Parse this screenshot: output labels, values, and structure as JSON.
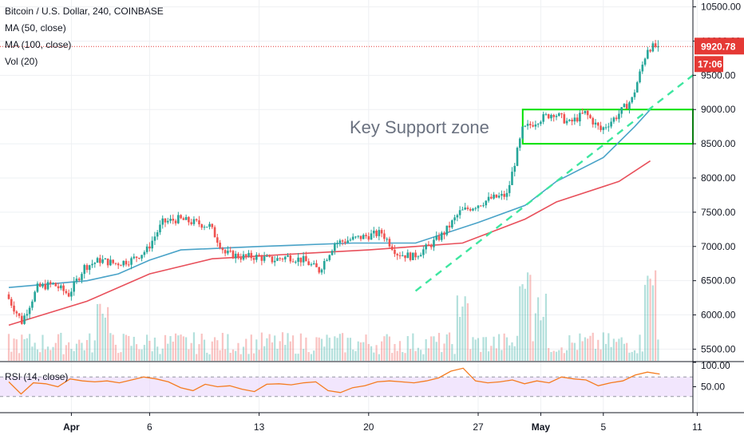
{
  "colors": {
    "up": "#26a69a",
    "down": "#ef5350",
    "ma50": "#4aa3c8",
    "ma100": "#e8505b",
    "support": "#00e000",
    "trendline": "#3ee6a0",
    "rsi": "#f57c20",
    "rsi_band": "#e9d5fb",
    "price_label": "#e53935",
    "grid": "#eef0f3"
  },
  "legend": {
    "symbol": "Bitcoin / U.S. Dollar, 240, COINBASE",
    "ma50": "MA (50, close)",
    "ma100": "MA (100, close)",
    "vol": "Vol (20)",
    "rsi": "RSI (14, close)"
  },
  "price_label": {
    "value": "9920.78",
    "countdown": "17:06"
  },
  "annotation": "Key Support zone",
  "chart_data": {
    "type": "candlestick",
    "title": "Bitcoin / U.S. Dollar, 240, COINBASE",
    "timeframe": "240",
    "x_tick_labels": [
      "Apr",
      "6",
      "13",
      "20",
      "27",
      "May",
      "5",
      "11"
    ],
    "y_ticks": [
      5500,
      6000,
      6500,
      7000,
      7500,
      8000,
      8500,
      9000,
      9500,
      10000,
      10500
    ],
    "y_tick_labels": [
      "5500.00",
      "6000.00",
      "6500.00",
      "7000.00",
      "7500.00",
      "8000.00",
      "8500.00",
      "9000.00",
      "9500.00",
      "10000.00",
      "10500.00"
    ],
    "ylim": [
      5330,
      10600
    ],
    "last_price": 9920.78,
    "price_path": [
      [
        "Mar 28",
        6300
      ],
      [
        "Mar 29",
        5900
      ],
      [
        "Mar 30",
        6400
      ],
      [
        "Mar 31",
        6450
      ],
      [
        "Apr 1",
        6300
      ],
      [
        "Apr 2",
        6700
      ],
      [
        "Apr 3",
        6800
      ],
      [
        "Apr 4",
        6750
      ],
      [
        "Apr 5",
        6800
      ],
      [
        "Apr 6",
        6950
      ],
      [
        "Apr 7",
        7350
      ],
      [
        "Apr 8",
        7400
      ],
      [
        "Apr 9",
        7350
      ],
      [
        "Apr 10",
        7300
      ],
      [
        "Apr 11",
        6900
      ],
      [
        "Apr 12",
        6850
      ],
      [
        "Apr 13",
        6850
      ],
      [
        "Apr 14",
        6800
      ],
      [
        "Apr 15",
        6850
      ],
      [
        "Apr 16",
        6800
      ],
      [
        "Apr 17",
        6650
      ],
      [
        "Apr 18",
        7050
      ],
      [
        "Apr 19",
        7100
      ],
      [
        "Apr 20",
        7150
      ],
      [
        "Apr 21",
        7200
      ],
      [
        "Apr 22",
        6900
      ],
      [
        "Apr 23",
        6850
      ],
      [
        "Apr 24",
        7000
      ],
      [
        "Apr 25",
        7200
      ],
      [
        "Apr 26",
        7500
      ],
      [
        "Apr 27",
        7600
      ],
      [
        "Apr 28",
        7700
      ],
      [
        "Apr 29",
        7750
      ],
      [
        "Apr 30",
        8700
      ],
      [
        "May 1",
        8850
      ],
      [
        "May 2",
        8950
      ],
      [
        "May 3",
        8800
      ],
      [
        "May 4",
        8950
      ],
      [
        "May 5",
        8700
      ],
      [
        "May 6",
        8900
      ],
      [
        "May 7",
        9150
      ],
      [
        "May 8",
        9900
      ],
      [
        "May 8 end",
        9920.78
      ]
    ],
    "overlays": [
      {
        "name": "MA (50, close)",
        "points": [
          [
            "Mar 28",
            6400
          ],
          [
            "Apr 2",
            6500
          ],
          [
            "Apr 4",
            6600
          ],
          [
            "Apr 6",
            6800
          ],
          [
            "Apr 8",
            6950
          ],
          [
            "Apr 13",
            7000
          ],
          [
            "Apr 19",
            7050
          ],
          [
            "Apr 23",
            7050
          ],
          [
            "Apr 27",
            7350
          ],
          [
            "Apr 30",
            7600
          ],
          [
            "May 2",
            7950
          ],
          [
            "May 5",
            8300
          ],
          [
            "May 7",
            8750
          ],
          [
            "May 8",
            9000
          ]
        ]
      },
      {
        "name": "MA (100, close)",
        "points": [
          [
            "Mar 28",
            5850
          ],
          [
            "Apr 2",
            6200
          ],
          [
            "Apr 6",
            6600
          ],
          [
            "Apr 10",
            6820
          ],
          [
            "Apr 16",
            6900
          ],
          [
            "Apr 20",
            6950
          ],
          [
            "Apr 26",
            7050
          ],
          [
            "Apr 30",
            7400
          ],
          [
            "May 2",
            7650
          ],
          [
            "May 6",
            7950
          ],
          [
            "May 8",
            8250
          ]
        ]
      }
    ],
    "support_zone": [
      8500,
      9000
    ],
    "trendline": [
      [
        "Apr 23",
        6350
      ],
      [
        "May 11",
        9550
      ]
    ],
    "volume": {
      "name": "Vol (20)",
      "spikes": [
        [
          "Apr 3",
          "high"
        ],
        [
          "Apr 26",
          "high"
        ],
        [
          "Apr 30",
          "highest"
        ],
        [
          "May 1",
          "high"
        ],
        [
          "May 8",
          "highest"
        ]
      ]
    },
    "rsi": {
      "name": "RSI (14, close)",
      "tick_labels": [
        "100.00",
        "50.00"
      ],
      "band": [
        30,
        70
      ],
      "values": [
        60,
        35,
        58,
        56,
        50,
        66,
        62,
        60,
        62,
        58,
        64,
        70,
        66,
        60,
        48,
        42,
        55,
        50,
        52,
        45,
        40,
        55,
        56,
        54,
        58,
        60,
        42,
        38,
        48,
        52,
        60,
        62,
        60,
        58,
        62,
        68,
        82,
        88,
        62,
        58,
        60,
        64,
        56,
        62,
        58,
        70,
        66,
        64,
        52,
        58,
        62,
        74,
        80,
        76
      ]
    }
  }
}
